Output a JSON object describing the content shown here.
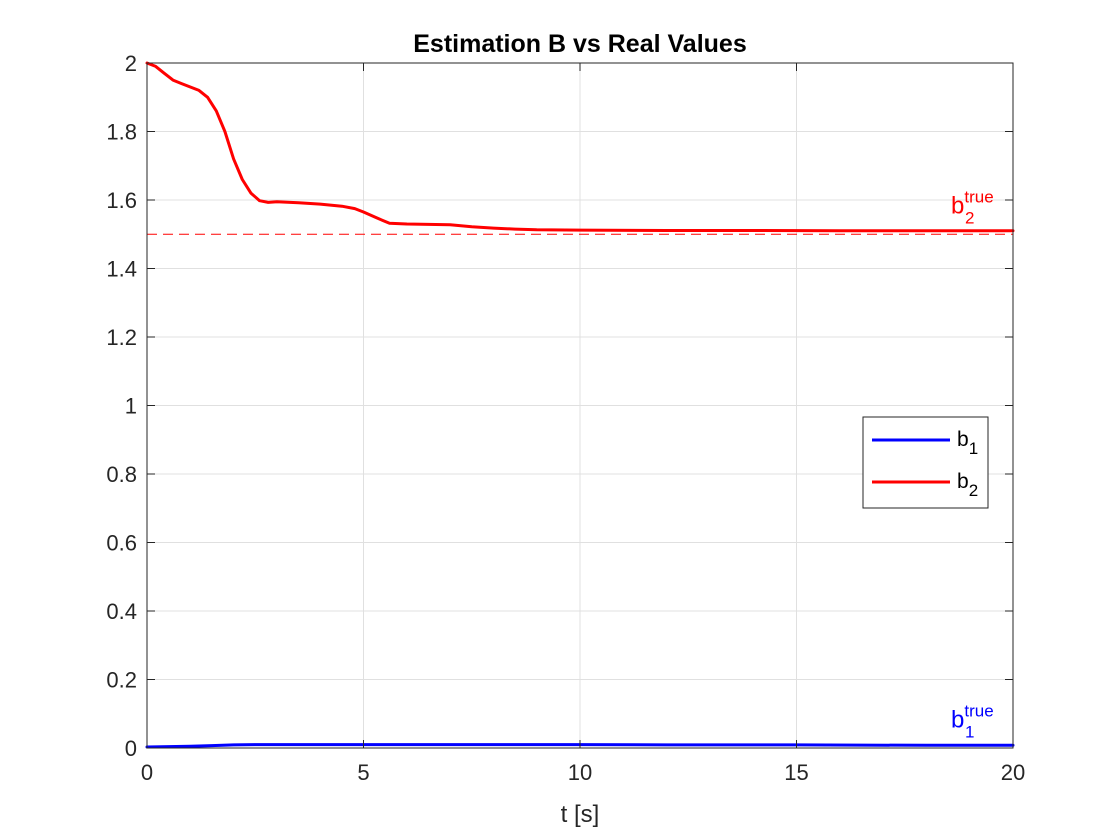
{
  "chart_data": {
    "type": "line",
    "title": "Estimation B vs Real Values",
    "xlabel": "t [s]",
    "ylabel": "",
    "xlim": [
      0,
      20
    ],
    "ylim": [
      0,
      2
    ],
    "xticks": [
      0,
      5,
      10,
      15,
      20
    ],
    "yticks": [
      0,
      0.2,
      0.4,
      0.6,
      0.8,
      1,
      1.2,
      1.4,
      1.6,
      1.8,
      2
    ],
    "x_tick_labels": [
      "0",
      "5",
      "10",
      "15",
      "20"
    ],
    "y_tick_labels": [
      "0",
      "0.2",
      "0.4",
      "0.6",
      "0.8",
      "1",
      "1.2",
      "1.4",
      "1.6",
      "1.8",
      "2"
    ],
    "grid": true,
    "legend_position": "right",
    "series": [
      {
        "name": "b",
        "subscript": "1",
        "color": "#0000ff",
        "x": [
          0,
          0.5,
          1,
          1.5,
          2,
          2.5,
          3,
          4,
          5,
          6,
          8,
          10,
          12,
          15,
          18,
          20
        ],
        "values": [
          0.003,
          0.004,
          0.005,
          0.007,
          0.009,
          0.01,
          0.01,
          0.01,
          0.01,
          0.01,
          0.01,
          0.01,
          0.009,
          0.009,
          0.008,
          0.008
        ]
      },
      {
        "name": "b",
        "subscript": "2",
        "color": "#ff0000",
        "x": [
          0,
          0.2,
          0.4,
          0.6,
          0.8,
          1.0,
          1.2,
          1.4,
          1.6,
          1.8,
          2.0,
          2.2,
          2.4,
          2.6,
          2.8,
          3.0,
          3.5,
          4.0,
          4.5,
          4.8,
          5.0,
          5.3,
          5.6,
          6.0,
          7.0,
          7.5,
          8.0,
          8.5,
          9.0,
          10,
          12,
          14,
          16,
          18,
          20
        ],
        "values": [
          2.0,
          1.99,
          1.97,
          1.95,
          1.94,
          1.93,
          1.92,
          1.9,
          1.86,
          1.8,
          1.72,
          1.66,
          1.62,
          1.598,
          1.593,
          1.595,
          1.592,
          1.588,
          1.582,
          1.575,
          1.565,
          1.548,
          1.532,
          1.53,
          1.528,
          1.522,
          1.518,
          1.515,
          1.513,
          1.512,
          1.511,
          1.511,
          1.51,
          1.51,
          1.51
        ]
      }
    ],
    "reference_lines": [
      {
        "y": 1.5,
        "color": "#ff0000",
        "style": "dashed"
      },
      {
        "y": 0,
        "color": "#0000ff",
        "style": "dashed"
      }
    ],
    "annotations": [
      {
        "base": "b",
        "sup": "true",
        "sub": "2",
        "x": 20,
        "y": 1.56,
        "color": "#ff0000"
      },
      {
        "base": "b",
        "sup": "true",
        "sub": "1",
        "x": 20,
        "y": 0.06,
        "color": "#0000ff"
      }
    ]
  }
}
